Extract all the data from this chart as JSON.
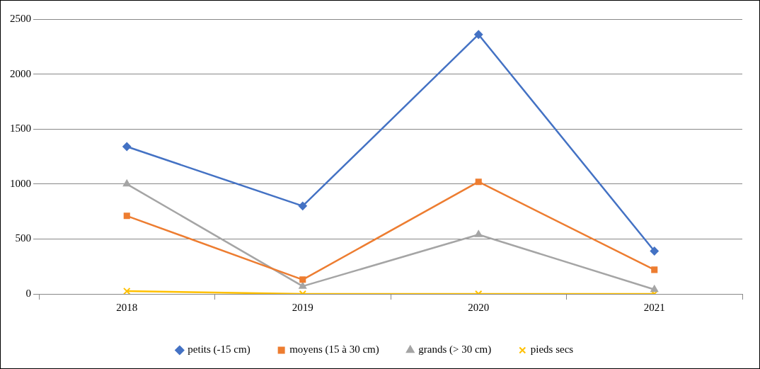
{
  "chart_data": {
    "type": "line",
    "categories": [
      "2018",
      "2019",
      "2020",
      "2021"
    ],
    "series": [
      {
        "name": "petits (-15 cm)",
        "color": "#4472c4",
        "marker": "diamond",
        "values": [
          1340,
          800,
          2360,
          390
        ]
      },
      {
        "name": "moyens (15 à 30 cm)",
        "color": "#ed7d31",
        "marker": "square",
        "values": [
          710,
          130,
          1020,
          220
        ]
      },
      {
        "name": "grands (> 30 cm)",
        "color": "#a5a5a5",
        "marker": "triangle",
        "values": [
          1000,
          70,
          540,
          40
        ]
      },
      {
        "name": "pieds secs",
        "color": "#ffc000",
        "marker": "cross",
        "values": [
          25,
          0,
          0,
          0
        ]
      }
    ],
    "ylim": [
      0,
      2500
    ],
    "yticks": [
      0,
      500,
      1000,
      1500,
      2000,
      2500
    ],
    "grid": "y",
    "legend": "bottom",
    "line_style": "solid"
  }
}
